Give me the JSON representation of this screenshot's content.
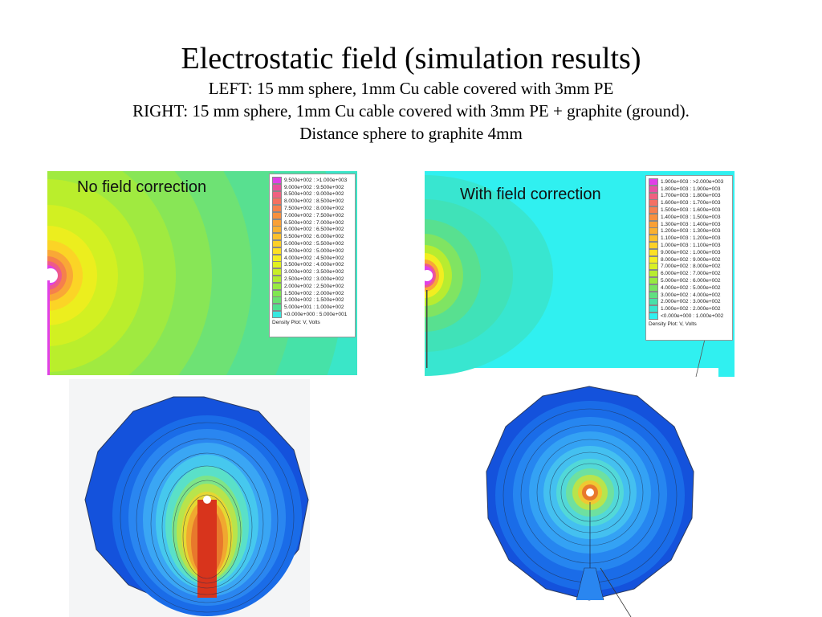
{
  "header": {
    "title": "Electrostatic field (simulation results)",
    "line1": "LEFT: 15 mm sphere, 1mm Cu cable covered with 3mm PE",
    "line2": "RIGHT: 15 mm sphere, 1mm Cu cable covered with 3mm PE + graphite (ground).",
    "line3": "Distance sphere to graphite 4mm"
  },
  "left_panel": {
    "label": "No field correction",
    "legend_title": "Density Plot: V, Volts",
    "legend": [
      {
        "range": "9.500e+002 : >1.000e+003",
        "color": "#e040e8"
      },
      {
        "range": "9.000e+002 : 9.500e+002",
        "color": "#e8509c"
      },
      {
        "range": "8.500e+002 : 9.000e+002",
        "color": "#f06080"
      },
      {
        "range": "8.000e+002 : 8.500e+002",
        "color": "#f47060"
      },
      {
        "range": "7.500e+002 : 8.000e+002",
        "color": "#f6804c"
      },
      {
        "range": "7.000e+002 : 7.500e+002",
        "color": "#f8903e"
      },
      {
        "range": "6.500e+002 : 7.000e+002",
        "color": "#f9a036"
      },
      {
        "range": "6.000e+002 : 6.500e+002",
        "color": "#fab030"
      },
      {
        "range": "5.500e+002 : 6.000e+002",
        "color": "#fbc02c"
      },
      {
        "range": "5.000e+002 : 5.500e+002",
        "color": "#fcd028"
      },
      {
        "range": "4.500e+002 : 5.000e+002",
        "color": "#fde024"
      },
      {
        "range": "4.000e+002 : 4.500e+002",
        "color": "#f4ee20"
      },
      {
        "range": "3.500e+002 : 4.000e+002",
        "color": "#e0f020"
      },
      {
        "range": "3.000e+002 : 3.500e+002",
        "color": "#c8ee28"
      },
      {
        "range": "2.500e+002 : 3.000e+002",
        "color": "#b0ec30"
      },
      {
        "range": "2.000e+002 : 2.500e+002",
        "color": "#98ea40"
      },
      {
        "range": "1.500e+002 : 2.000e+002",
        "color": "#80e650"
      },
      {
        "range": "1.000e+002 : 1.500e+002",
        "color": "#68e270"
      },
      {
        "range": "5.000e+001 : 1.000e+002",
        "color": "#50e090"
      },
      {
        "range": "<0.000e+000 : 5.000e+001",
        "color": "#38e8e0"
      }
    ]
  },
  "right_panel": {
    "label": "With field correction",
    "legend_title": "Density Plot: V, Volts",
    "legend": [
      {
        "range": "1.900e+003 : >2.000e+003",
        "color": "#e040e8"
      },
      {
        "range": "1.800e+003 : 1.900e+003",
        "color": "#e850a4"
      },
      {
        "range": "1.700e+003 : 1.800e+003",
        "color": "#f06080"
      },
      {
        "range": "1.600e+003 : 1.700e+003",
        "color": "#f47064"
      },
      {
        "range": "1.500e+003 : 1.600e+003",
        "color": "#f68050"
      },
      {
        "range": "1.400e+003 : 1.500e+003",
        "color": "#f89040"
      },
      {
        "range": "1.300e+003 : 1.400e+003",
        "color": "#f9a036"
      },
      {
        "range": "1.200e+003 : 1.300e+003",
        "color": "#fab030"
      },
      {
        "range": "1.100e+003 : 1.200e+003",
        "color": "#fbc02c"
      },
      {
        "range": "1.000e+003 : 1.100e+003",
        "color": "#fcd028"
      },
      {
        "range": "9.000e+002 : 1.000e+003",
        "color": "#fde024"
      },
      {
        "range": "8.000e+002 : 9.000e+002",
        "color": "#f4ee20"
      },
      {
        "range": "7.000e+002 : 8.000e+002",
        "color": "#d8f024"
      },
      {
        "range": "6.000e+002 : 7.000e+002",
        "color": "#b8ec30"
      },
      {
        "range": "5.000e+002 : 6.000e+002",
        "color": "#98ea40"
      },
      {
        "range": "4.000e+002 : 5.000e+002",
        "color": "#78e460"
      },
      {
        "range": "3.000e+002 : 4.000e+002",
        "color": "#60e080"
      },
      {
        "range": "2.000e+002 : 3.000e+002",
        "color": "#48e0a8"
      },
      {
        "range": "1.000e+002 : 2.000e+002",
        "color": "#38e6d0"
      },
      {
        "range": "<0.000e+000 : 1.000e+002",
        "color": "#30f0f0"
      }
    ]
  },
  "colors": {
    "background_cyan": "#33f0ee",
    "contour_blue": "#1a5ce0",
    "hot_red": "#d8341c"
  }
}
